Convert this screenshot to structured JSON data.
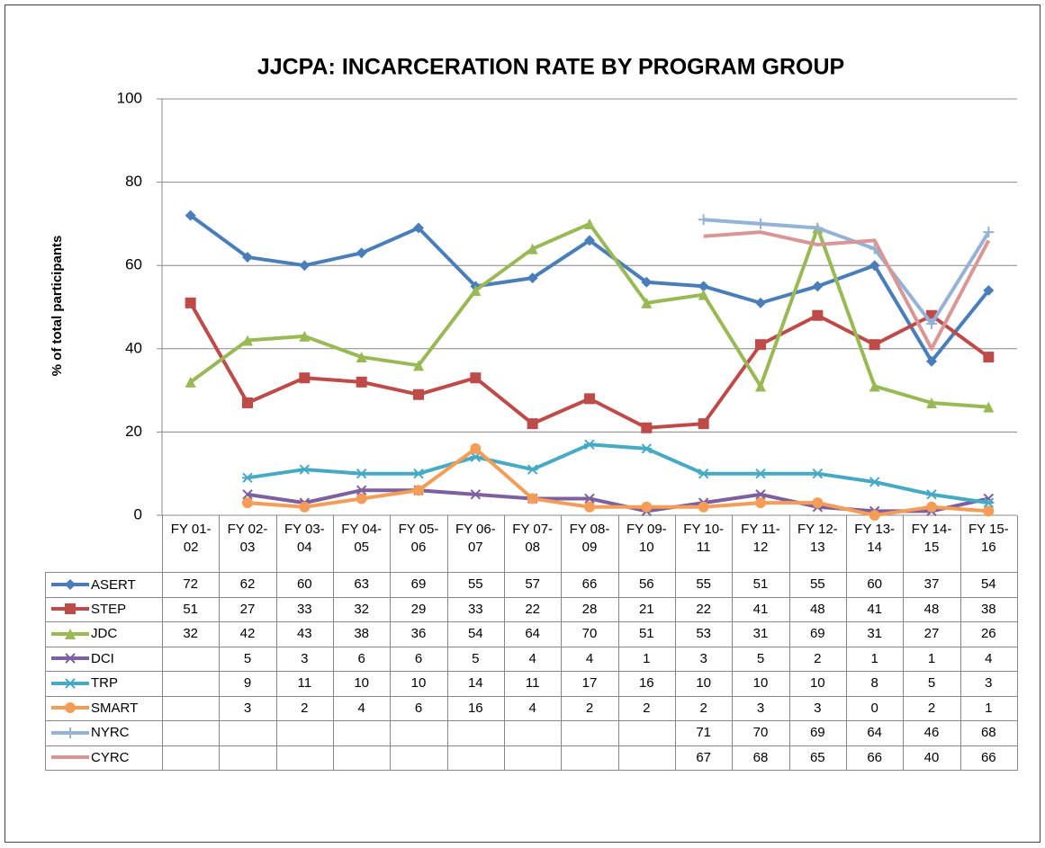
{
  "chart_data": {
    "type": "line",
    "title": "JJCPA: INCARCERATION RATE BY PROGRAM GROUP",
    "y_label": "% of total participants",
    "categories": [
      "FY 01-02",
      "FY 02-03",
      "FY 03-04",
      "FY 04-05",
      "FY 05-06",
      "FY 06-07",
      "FY 07-08",
      "FY 08-09",
      "FY 09-10",
      "FY 10-11",
      "FY 11-12",
      "FY 12-13",
      "FY 13-14",
      "FY 14-15",
      "FY 15-16"
    ],
    "ylim": [
      0,
      100
    ],
    "yticks": [
      0,
      20,
      40,
      60,
      80,
      100
    ],
    "grid": true,
    "series": [
      {
        "name": "ASERT",
        "color": "#4a7ebb",
        "marker": "diamond",
        "values": [
          72,
          62,
          60,
          63,
          69,
          55,
          57,
          66,
          56,
          55,
          51,
          55,
          60,
          37,
          54
        ]
      },
      {
        "name": "STEP",
        "color": "#be4b48",
        "marker": "square",
        "values": [
          51,
          27,
          33,
          32,
          29,
          33,
          22,
          28,
          21,
          22,
          41,
          48,
          41,
          48,
          38
        ]
      },
      {
        "name": "JDC",
        "color": "#98b954",
        "marker": "triangle",
        "values": [
          32,
          42,
          43,
          38,
          36,
          54,
          64,
          70,
          51,
          53,
          31,
          69,
          31,
          27,
          26
        ]
      },
      {
        "name": "DCI",
        "color": "#7d60a0",
        "marker": "x",
        "values": [
          null,
          5,
          3,
          6,
          6,
          5,
          4,
          4,
          1,
          3,
          5,
          2,
          1,
          1,
          4
        ]
      },
      {
        "name": "TRP",
        "color": "#46aac5",
        "marker": "star",
        "values": [
          null,
          9,
          11,
          10,
          10,
          14,
          11,
          17,
          16,
          10,
          10,
          10,
          8,
          5,
          3
        ]
      },
      {
        "name": "SMART",
        "color": "#f59d56",
        "marker": "circle",
        "values": [
          null,
          3,
          2,
          4,
          6,
          16,
          4,
          2,
          2,
          2,
          3,
          3,
          0,
          2,
          1
        ]
      },
      {
        "name": "NYRC",
        "color": "#95b3d7",
        "marker": "plus",
        "values": [
          null,
          null,
          null,
          null,
          null,
          null,
          null,
          null,
          null,
          71,
          70,
          69,
          64,
          46,
          68
        ]
      },
      {
        "name": "CYRC",
        "color": "#d99694",
        "marker": "none",
        "values": [
          null,
          null,
          null,
          null,
          null,
          null,
          null,
          null,
          null,
          67,
          68,
          65,
          66,
          40,
          66
        ]
      }
    ]
  }
}
